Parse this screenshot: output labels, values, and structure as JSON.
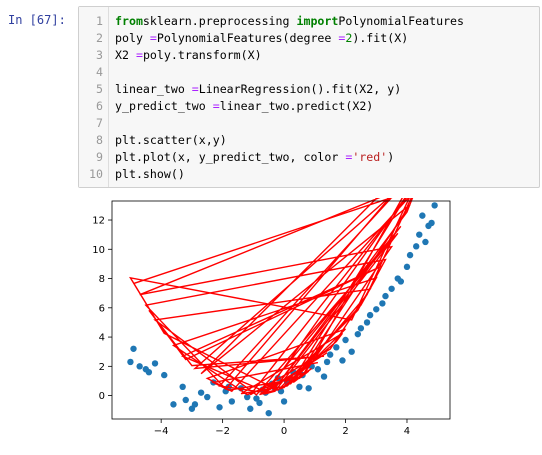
{
  "cell": {
    "prompt": "In  [67]:",
    "lines": [
      {
        "n": "1",
        "tokens": [
          [
            "kw",
            "from"
          ],
          [
            "",
            "sklearn.preprocessing "
          ],
          [
            "kw",
            "import"
          ],
          [
            "",
            "PolynomialFeatures"
          ]
        ]
      },
      {
        "n": "2",
        "tokens": [
          [
            "",
            "poly "
          ],
          [
            "op",
            "="
          ],
          [
            "",
            "PolynomialFeatures(degree "
          ],
          [
            "op",
            "="
          ],
          [
            "",
            ""
          ],
          [
            "num",
            "2"
          ],
          [
            "",
            ").fit(X)"
          ]
        ]
      },
      {
        "n": "3",
        "tokens": [
          [
            "",
            "X2 "
          ],
          [
            "op",
            "="
          ],
          [
            "",
            "poly.transform(X)"
          ]
        ]
      },
      {
        "n": "4",
        "tokens": []
      },
      {
        "n": "5",
        "tokens": [
          [
            "",
            "linear_two "
          ],
          [
            "op",
            "="
          ],
          [
            "",
            "LinearRegression().fit(X2, y)"
          ]
        ]
      },
      {
        "n": "6",
        "tokens": [
          [
            "",
            "y_predict_two "
          ],
          [
            "op",
            "="
          ],
          [
            "",
            "linear_two.predict(X2)"
          ]
        ]
      },
      {
        "n": "7",
        "tokens": []
      },
      {
        "n": "8",
        "tokens": [
          [
            "",
            "plt.scatter(x,y)"
          ]
        ]
      },
      {
        "n": "9",
        "tokens": [
          [
            "",
            "plt.plot(x, y_predict_two, color "
          ],
          [
            "op",
            "="
          ],
          [
            "",
            ""
          ],
          [
            "str",
            "'red'"
          ],
          [
            "",
            ")"
          ]
        ]
      },
      {
        "n": "10",
        "tokens": [
          [
            "",
            "plt.show()"
          ]
        ]
      }
    ]
  },
  "chart_data": {
    "type": "scatter",
    "xlim": [
      -5.6,
      5.4
    ],
    "ylim": [
      -1.6,
      13.3
    ],
    "xticks": [
      "-4",
      "-2",
      "0",
      "2",
      "4"
    ],
    "xtick_values": [
      -4,
      -2,
      0,
      2,
      4
    ],
    "yticks": [
      "0",
      "2",
      "4",
      "6",
      "8",
      "10",
      "12"
    ],
    "ytick_values": [
      0,
      2,
      4,
      6,
      8,
      10,
      12
    ],
    "points": [
      [
        -4.9,
        3.2
      ],
      [
        -5.0,
        2.3
      ],
      [
        -4.7,
        2.0
      ],
      [
        -4.5,
        1.8
      ],
      [
        -4.4,
        1.6
      ],
      [
        -4.2,
        2.2
      ],
      [
        -3.9,
        1.4
      ],
      [
        -3.6,
        -0.6
      ],
      [
        -3.3,
        0.6
      ],
      [
        -3.2,
        -0.3
      ],
      [
        -3.0,
        -0.9
      ],
      [
        -2.9,
        -0.6
      ],
      [
        -2.7,
        0.2
      ],
      [
        -2.5,
        -0.1
      ],
      [
        -2.3,
        0.9
      ],
      [
        -2.1,
        -0.8
      ],
      [
        -1.9,
        0.3
      ],
      [
        -1.8,
        0.6
      ],
      [
        -1.7,
        -0.4
      ],
      [
        -1.4,
        0.5
      ],
      [
        -1.2,
        -0.1
      ],
      [
        -1.1,
        -0.9
      ],
      [
        -0.9,
        -0.2
      ],
      [
        -0.8,
        -0.5
      ],
      [
        -0.7,
        0.4
      ],
      [
        -0.6,
        0.2
      ],
      [
        -0.5,
        -1.2
      ],
      [
        -0.4,
        0.8
      ],
      [
        -0.3,
        0.5
      ],
      [
        -0.2,
        1.2
      ],
      [
        -0.1,
        0.3
      ],
      [
        0.0,
        -0.4
      ],
      [
        0.1,
        0.9
      ],
      [
        0.2,
        1.1
      ],
      [
        0.3,
        1.6
      ],
      [
        0.5,
        0.6
      ],
      [
        0.6,
        1.4
      ],
      [
        0.8,
        0.5
      ],
      [
        0.9,
        2.0
      ],
      [
        1.1,
        1.8
      ],
      [
        1.3,
        1.3
      ],
      [
        1.4,
        2.3
      ],
      [
        1.5,
        2.8
      ],
      [
        1.7,
        3.3
      ],
      [
        1.9,
        2.4
      ],
      [
        2.0,
        3.8
      ],
      [
        2.2,
        3.0
      ],
      [
        2.4,
        4.2
      ],
      [
        2.5,
        4.6
      ],
      [
        2.7,
        5.0
      ],
      [
        2.8,
        5.5
      ],
      [
        3.0,
        5.9
      ],
      [
        3.2,
        6.3
      ],
      [
        3.3,
        6.8
      ],
      [
        3.5,
        7.3
      ],
      [
        3.7,
        8.0
      ],
      [
        3.8,
        7.8
      ],
      [
        4.0,
        8.8
      ],
      [
        4.1,
        9.6
      ],
      [
        4.3,
        10.2
      ],
      [
        4.4,
        11.0
      ],
      [
        4.5,
        12.3
      ],
      [
        4.6,
        10.5
      ],
      [
        4.7,
        11.6
      ],
      [
        4.9,
        13.0
      ],
      [
        4.8,
        11.8
      ]
    ],
    "curve_color": "#ff0000",
    "point_color": "#1f77b4"
  }
}
